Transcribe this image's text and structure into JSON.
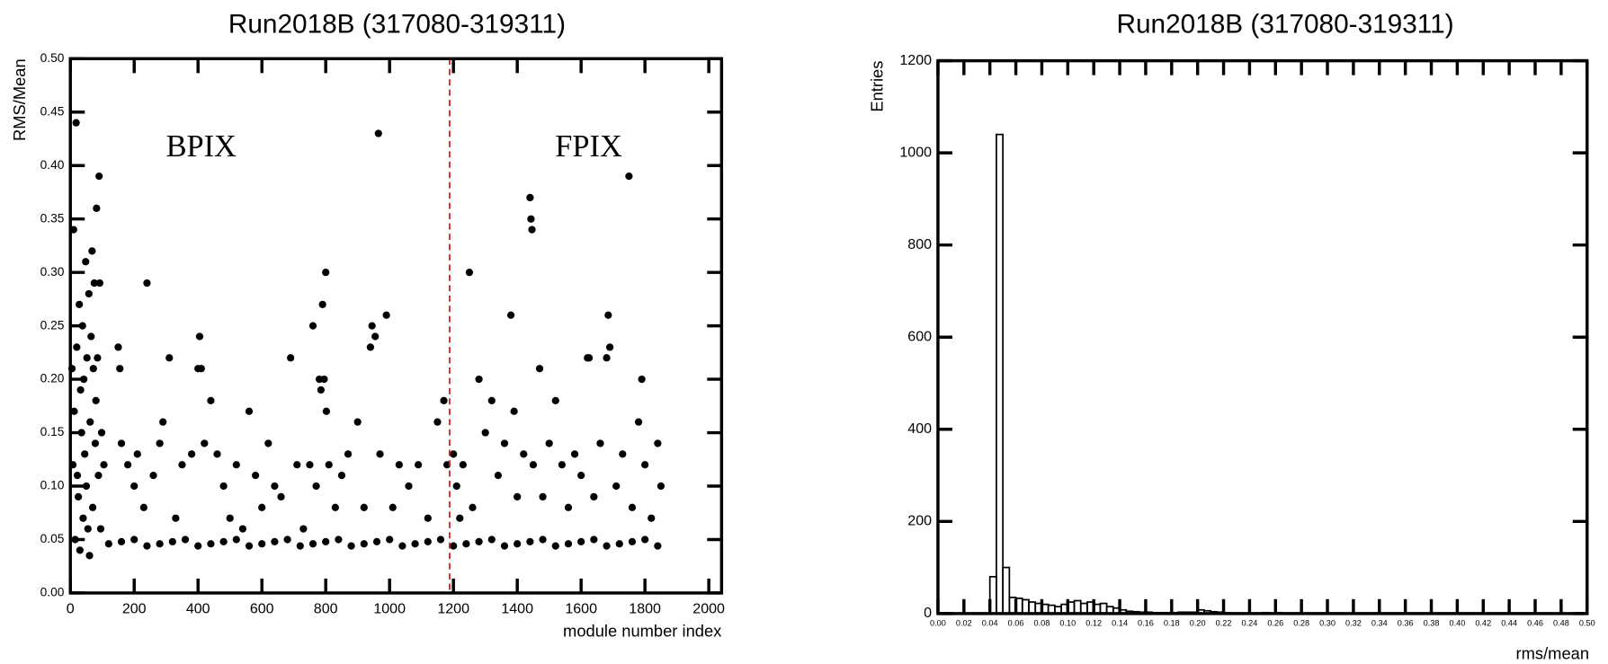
{
  "chart_data": [
    {
      "type": "scatter",
      "title": "Run2018B (317080-319311)",
      "x_label": "module number index",
      "y_label": "RMS/Mean",
      "annotations": [
        "BPIX",
        "FPIX"
      ],
      "divider_x": 1188,
      "divider_color": "#e02020",
      "color": "#000000",
      "xlim": [
        0,
        2040
      ],
      "ylim": [
        0,
        0.5
      ],
      "xticks": [
        0,
        200,
        400,
        600,
        800,
        1000,
        1200,
        1400,
        1600,
        1800,
        2000
      ],
      "yticks": [
        {
          "value": 0,
          "label": "0.00"
        },
        {
          "value": 0.05,
          "label": "0.05"
        },
        {
          "value": 0.1,
          "label": "0.10"
        },
        {
          "value": 0.15,
          "label": "0.15"
        },
        {
          "value": 0.2,
          "label": "0.20"
        },
        {
          "value": 0.25,
          "label": "0.25"
        },
        {
          "value": 0.3,
          "label": "0.30"
        },
        {
          "value": 0.35,
          "label": "0.35"
        },
        {
          "value": 0.4,
          "label": "0.40"
        },
        {
          "value": 0.45,
          "label": "0.45"
        },
        {
          "value": 0.5,
          "label": "0.50"
        }
      ],
      "x": [
        5,
        8,
        10,
        12,
        15,
        18,
        20,
        22,
        25,
        28,
        30,
        32,
        35,
        38,
        40,
        42,
        45,
        48,
        50,
        52,
        55,
        58,
        60,
        62,
        65,
        68,
        70,
        72,
        75,
        78,
        80,
        82,
        85,
        88,
        90,
        92,
        95,
        98,
        105,
        150,
        155,
        160,
        180,
        200,
        210,
        230,
        240,
        260,
        280,
        290,
        310,
        330,
        350,
        380,
        400,
        405,
        410,
        420,
        440,
        460,
        480,
        500,
        520,
        540,
        560,
        580,
        600,
        620,
        640,
        660,
        690,
        710,
        730,
        750,
        760,
        770,
        780,
        785,
        790,
        795,
        800,
        802,
        810,
        830,
        850,
        870,
        900,
        920,
        940,
        945,
        955,
        965,
        970,
        990,
        1010,
        1030,
        1060,
        1090,
        1120,
        1150,
        1170,
        1180,
        1200,
        1210,
        1220,
        1230,
        1250,
        1260,
        1280,
        1300,
        1320,
        1340,
        1360,
        1380,
        1390,
        1400,
        1420,
        1440,
        1443,
        1446,
        1450,
        1470,
        1480,
        1500,
        1520,
        1540,
        1560,
        1580,
        1600,
        1620,
        1625,
        1640,
        1660,
        1680,
        1685,
        1690,
        1710,
        1730,
        1750,
        1760,
        1780,
        1790,
        1800,
        1820,
        1840,
        1850,
        120,
        160,
        200,
        240,
        280,
        320,
        360,
        400,
        440,
        480,
        520,
        560,
        600,
        640,
        680,
        720,
        760,
        800,
        840,
        880,
        920,
        960,
        1000,
        1040,
        1080,
        1120,
        1160,
        1200,
        1240,
        1280,
        1320,
        1360,
        1400,
        1440,
        1480,
        1520,
        1560,
        1600,
        1640,
        1680,
        1720,
        1760,
        1800,
        1840
      ],
      "y": [
        0.21,
        0.12,
        0.34,
        0.17,
        0.05,
        0.44,
        0.23,
        0.11,
        0.09,
        0.27,
        0.04,
        0.19,
        0.15,
        0.25,
        0.07,
        0.2,
        0.13,
        0.31,
        0.1,
        0.22,
        0.06,
        0.28,
        0.035,
        0.16,
        0.24,
        0.32,
        0.08,
        0.21,
        0.29,
        0.14,
        0.18,
        0.36,
        0.22,
        0.11,
        0.39,
        0.29,
        0.06,
        0.15,
        0.12,
        0.23,
        0.21,
        0.14,
        0.12,
        0.1,
        0.13,
        0.08,
        0.29,
        0.11,
        0.14,
        0.16,
        0.22,
        0.07,
        0.12,
        0.13,
        0.21,
        0.24,
        0.21,
        0.14,
        0.18,
        0.13,
        0.1,
        0.07,
        0.12,
        0.06,
        0.17,
        0.11,
        0.08,
        0.14,
        0.1,
        0.09,
        0.22,
        0.12,
        0.06,
        0.12,
        0.25,
        0.1,
        0.2,
        0.19,
        0.27,
        0.2,
        0.3,
        0.17,
        0.12,
        0.08,
        0.11,
        0.13,
        0.16,
        0.08,
        0.23,
        0.25,
        0.24,
        0.43,
        0.13,
        0.26,
        0.08,
        0.12,
        0.1,
        0.12,
        0.07,
        0.16,
        0.18,
        0.12,
        0.13,
        0.1,
        0.07,
        0.12,
        0.3,
        0.08,
        0.2,
        0.15,
        0.18,
        0.11,
        0.14,
        0.26,
        0.17,
        0.09,
        0.13,
        0.37,
        0.35,
        0.34,
        0.12,
        0.21,
        0.09,
        0.14,
        0.18,
        0.12,
        0.08,
        0.13,
        0.11,
        0.22,
        0.22,
        0.09,
        0.14,
        0.22,
        0.26,
        0.23,
        0.1,
        0.13,
        0.39,
        0.08,
        0.16,
        0.2,
        0.12,
        0.07,
        0.14,
        0.1,
        0.046,
        0.048,
        0.05,
        0.044,
        0.046,
        0.048,
        0.05,
        0.044,
        0.046,
        0.048,
        0.05,
        0.044,
        0.046,
        0.048,
        0.05,
        0.044,
        0.046,
        0.048,
        0.05,
        0.044,
        0.046,
        0.048,
        0.05,
        0.044,
        0.046,
        0.048,
        0.05,
        0.044,
        0.046,
        0.048,
        0.05,
        0.044,
        0.046,
        0.048,
        0.05,
        0.044,
        0.046,
        0.048,
        0.05,
        0.044,
        0.046,
        0.048,
        0.05,
        0.044
      ]
    },
    {
      "type": "histogram",
      "title": "Run2018B (317080-319311)",
      "x_label": "rms/mean",
      "y_label": "Entries",
      "color": "#000000",
      "xlim": [
        0,
        0.5
      ],
      "ylim": [
        0,
        1200
      ],
      "xticks": [
        {
          "value": 0,
          "label": "0.00"
        },
        {
          "value": 0.02,
          "label": "0.02"
        },
        {
          "value": 0.04,
          "label": "0.04"
        },
        {
          "value": 0.06,
          "label": "0.06"
        },
        {
          "value": 0.08,
          "label": "0.08"
        },
        {
          "value": 0.1,
          "label": "0.10"
        },
        {
          "value": 0.12,
          "label": "0.12"
        },
        {
          "value": 0.14,
          "label": "0.14"
        },
        {
          "value": 0.16,
          "label": "0.16"
        },
        {
          "value": 0.18,
          "label": "0.18"
        },
        {
          "value": 0.2,
          "label": "0.20"
        },
        {
          "value": 0.22,
          "label": "0.22"
        },
        {
          "value": 0.24,
          "label": "0.24"
        },
        {
          "value": 0.26,
          "label": "0.26"
        },
        {
          "value": 0.28,
          "label": "0.28"
        },
        {
          "value": 0.3,
          "label": "0.30"
        },
        {
          "value": 0.32,
          "label": "0.32"
        },
        {
          "value": 0.34,
          "label": "0.34"
        },
        {
          "value": 0.36,
          "label": "0.36"
        },
        {
          "value": 0.38,
          "label": "0.38"
        },
        {
          "value": 0.4,
          "label": "0.40"
        },
        {
          "value": 0.42,
          "label": "0.42"
        },
        {
          "value": 0.44,
          "label": "0.44"
        },
        {
          "value": 0.46,
          "label": "0.46"
        },
        {
          "value": 0.48,
          "label": "0.48"
        },
        {
          "value": 0.5,
          "label": "0.50"
        }
      ],
      "yticks": [
        0,
        200,
        400,
        600,
        800,
        1000,
        1200
      ],
      "bins": [
        0,
        0.005,
        0.01,
        0.015,
        0.02,
        0.025,
        0.03,
        0.035,
        0.04,
        0.045,
        0.05,
        0.055,
        0.06,
        0.065,
        0.07,
        0.075,
        0.08,
        0.085,
        0.09,
        0.095,
        0.1,
        0.105,
        0.11,
        0.115,
        0.12,
        0.125,
        0.13,
        0.135,
        0.14,
        0.145,
        0.15,
        0.155,
        0.16,
        0.165,
        0.17,
        0.175,
        0.18,
        0.185,
        0.19,
        0.195,
        0.2,
        0.205,
        0.21,
        0.215,
        0.22,
        0.225,
        0.23,
        0.235,
        0.24,
        0.245,
        0.25,
        0.255,
        0.26,
        0.265,
        0.27,
        0.275,
        0.28,
        0.285,
        0.29,
        0.295,
        0.3,
        0.305,
        0.31,
        0.315,
        0.32,
        0.325,
        0.33,
        0.335,
        0.34,
        0.345,
        0.35,
        0.355,
        0.36,
        0.365,
        0.37,
        0.375,
        0.38,
        0.385,
        0.39,
        0.395,
        0.4,
        0.405,
        0.41,
        0.415,
        0.42,
        0.425,
        0.43,
        0.435,
        0.44,
        0.445,
        0.45,
        0.455,
        0.46,
        0.465,
        0.47,
        0.475,
        0.48,
        0.485,
        0.49,
        0.495,
        0.5
      ],
      "values": [
        0,
        0,
        0,
        0,
        0,
        0,
        0,
        0,
        80,
        1040,
        100,
        35,
        33,
        30,
        25,
        22,
        20,
        18,
        15,
        20,
        25,
        28,
        22,
        25,
        20,
        22,
        15,
        12,
        8,
        5,
        4,
        3,
        3,
        2,
        2,
        2,
        2,
        3,
        3,
        3,
        8,
        6,
        4,
        3,
        2,
        1,
        1,
        1,
        1,
        1,
        2,
        1,
        2,
        1,
        1,
        1,
        0,
        1,
        0,
        1,
        1,
        0,
        0,
        0,
        0,
        0,
        1,
        0,
        0,
        0,
        0,
        0,
        0,
        0,
        0,
        0,
        0,
        1,
        0,
        0,
        0,
        0,
        0,
        0,
        0,
        0,
        0,
        0,
        0,
        0,
        0,
        0,
        0,
        0,
        0,
        0,
        0,
        0,
        0,
        0
      ]
    }
  ]
}
